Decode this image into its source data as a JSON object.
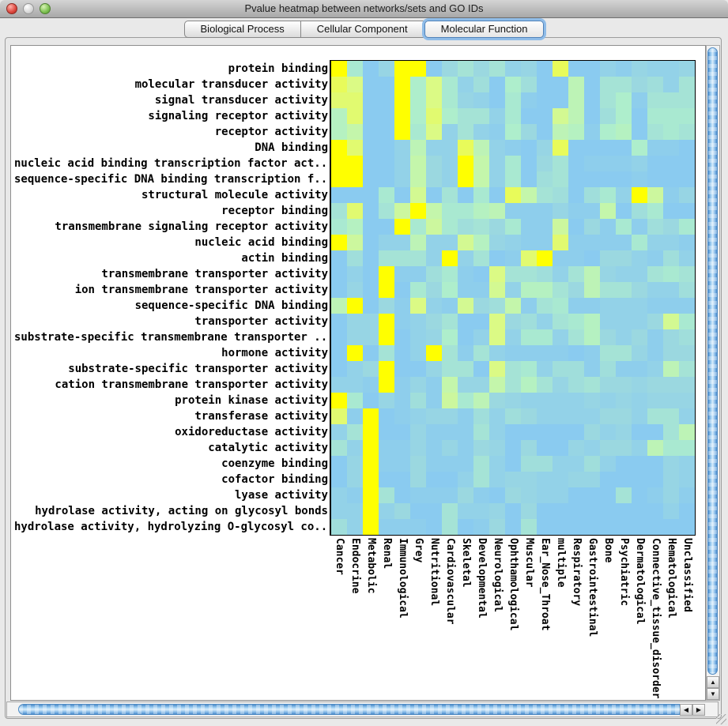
{
  "window": {
    "title": "Pvalue heatmap between networks/sets and GO IDs"
  },
  "titlebar_icons": [
    "close-icon",
    "minimize-icon",
    "zoom-icon"
  ],
  "tabs": [
    {
      "label": "Biological Process",
      "selected": false
    },
    {
      "label": "Cellular Component",
      "selected": false
    },
    {
      "label": "Molecular Function",
      "selected": true
    }
  ],
  "scrollbar_icons": {
    "up": "▲",
    "down": "▼",
    "left": "◀",
    "right": "▶"
  },
  "colors": {
    "heatmap_base_blue": "#8ACBF0",
    "heatmap_max_yellow": "#FFFF00",
    "selected_tab_ring": "#8FBCE8",
    "scrollbar_thumb_blue": "#7FB5E6",
    "panel_gray": "#E8E8E8"
  },
  "chart_data": {
    "type": "heatmap",
    "title": "Pvalue heatmap between networks/sets and GO IDs",
    "xlabel": "",
    "ylabel": "",
    "legend_position": "none",
    "grid": false,
    "value_range": [
      0,
      1
    ],
    "colorscale": [
      {
        "v": 0.0,
        "c": "#8ACBF0"
      },
      {
        "v": 0.2,
        "c": "#9BD8E0"
      },
      {
        "v": 0.4,
        "c": "#AEEECC"
      },
      {
        "v": 0.55,
        "c": "#C4F6AB"
      },
      {
        "v": 0.7,
        "c": "#DBFA85"
      },
      {
        "v": 0.85,
        "c": "#EEFB45"
      },
      {
        "v": 1.0,
        "c": "#FFFF00"
      }
    ],
    "rows": [
      "protein binding",
      "molecular transducer activity",
      "signal transducer activity",
      "signaling receptor activity",
      "receptor activity",
      "DNA binding",
      "nucleic acid binding transcription factor act...",
      "sequence-specific DNA binding transcription f...",
      "structural molecule activity",
      "receptor binding",
      "transmembrane signaling receptor activity",
      "nucleic acid binding",
      "actin binding",
      "transmembrane transporter activity",
      "ion transmembrane transporter activity",
      "sequence-specific DNA binding",
      "transporter activity",
      "substrate-specific transmembrane transporter ...",
      "hormone activity",
      "substrate-specific transporter activity",
      "cation transmembrane transporter activity",
      "protein kinase activity",
      "transferase activity",
      "oxidoreductase activity",
      "catalytic activity",
      "coenzyme binding",
      "cofactor binding",
      "lyase activity",
      "hydrolase activity, acting on glycosyl bonds",
      "hydrolase activity, hydrolyzing O-glycosyl co..."
    ],
    "columns": [
      "Cancer",
      "Endocrine",
      "Metabolic",
      "Renal",
      "Immunological",
      "Grey",
      "Nutritional",
      "Cardiovascular",
      "Skeletal",
      "Developmental",
      "Neurological",
      "Ophthamological",
      "Muscular",
      "Ear_Nose_Throat",
      "multiple",
      "Respiratory",
      "Gastrointestinal",
      "Bone",
      "Psychiatric",
      "Dermatological",
      "Connective_tissue_disorder",
      "Hematological",
      "Unclassified"
    ],
    "values": [
      [
        1,
        0.35,
        0,
        0.15,
        1,
        1,
        0,
        0.2,
        0.3,
        0.2,
        0.3,
        0.1,
        0.15,
        0,
        0.8,
        0,
        0,
        0.1,
        0.05,
        0.15,
        0.1,
        0.1,
        0.15
      ],
      [
        0.8,
        0.7,
        0,
        0,
        1,
        0.4,
        0.7,
        0.35,
        0.1,
        0.25,
        0,
        0.4,
        0.25,
        0,
        0,
        0.5,
        0,
        0.3,
        0.3,
        0.2,
        0.25,
        0.1,
        0.3
      ],
      [
        0.75,
        0.75,
        0,
        0,
        1,
        0.4,
        0.7,
        0.35,
        0.15,
        0.1,
        0,
        0.35,
        0.05,
        0,
        0,
        0.5,
        0,
        0.3,
        0.4,
        0.05,
        0.3,
        0.3,
        0.3
      ],
      [
        0.45,
        0.75,
        0,
        0,
        1,
        0.4,
        0.75,
        0.4,
        0.3,
        0.3,
        0.1,
        0.35,
        0,
        0,
        0.65,
        0.5,
        0,
        0.25,
        0.4,
        0,
        0.35,
        0.35,
        0.35
      ],
      [
        0.45,
        0.55,
        0,
        0,
        1,
        0.35,
        0.7,
        0.1,
        0.3,
        0.1,
        0.05,
        0.4,
        0.2,
        0,
        0.5,
        0.45,
        0.05,
        0.4,
        0.45,
        0,
        0.3,
        0.35,
        0.3
      ],
      [
        1,
        0.75,
        0,
        0,
        0.1,
        0.5,
        0.1,
        0.1,
        0.8,
        0.5,
        0.1,
        0.05,
        0,
        0.15,
        0.8,
        0,
        0,
        0,
        0,
        0.4,
        0.05,
        0.05,
        0
      ],
      [
        1,
        1,
        0,
        0,
        0.1,
        0.55,
        0.2,
        0.1,
        1,
        0.55,
        0.1,
        0.35,
        0,
        0.2,
        0.3,
        0,
        0.05,
        0.05,
        0.05,
        0.1,
        0,
        0,
        0
      ],
      [
        1,
        1,
        0,
        0,
        0.1,
        0.55,
        0.2,
        0.1,
        1,
        0.55,
        0.1,
        0.35,
        0,
        0.25,
        0.3,
        0,
        0,
        0,
        0,
        0.05,
        0,
        0,
        0
      ],
      [
        0,
        0,
        0,
        0.35,
        0,
        0.65,
        0,
        0.3,
        0,
        0.35,
        0,
        0.8,
        0.55,
        0.3,
        0.25,
        0,
        0.25,
        0.35,
        0.1,
        1,
        0.6,
        0.05,
        0.15
      ],
      [
        0.3,
        0.75,
        0,
        0.3,
        0.6,
        1,
        0.55,
        0.35,
        0.35,
        0.45,
        0.5,
        0.05,
        0.05,
        0.05,
        0.15,
        0.05,
        0.05,
        0.55,
        0,
        0.25,
        0.35,
        0,
        0
      ],
      [
        0.35,
        0.45,
        0,
        0,
        1,
        0.35,
        0.6,
        0.35,
        0.25,
        0.3,
        0.2,
        0.35,
        0.05,
        0.05,
        0.6,
        0,
        0.2,
        0.05,
        0.35,
        0.05,
        0.25,
        0.2,
        0.35
      ],
      [
        1,
        0.6,
        0,
        0.1,
        0.1,
        0.5,
        0.1,
        0.1,
        0.65,
        0.45,
        0.15,
        0.1,
        0.05,
        0.05,
        0.75,
        0.05,
        0.05,
        0.05,
        0.05,
        0.35,
        0.1,
        0.1,
        0.05
      ],
      [
        0,
        0.25,
        0,
        0.3,
        0.3,
        0.3,
        0.1,
        1,
        0.1,
        0.3,
        0,
        0.05,
        0.75,
        1,
        0.05,
        0.05,
        0,
        0.2,
        0.2,
        0.1,
        0.05,
        0.25,
        0.1
      ],
      [
        0,
        0.1,
        0,
        1,
        0.05,
        0.05,
        0.25,
        0.35,
        0.05,
        0,
        0.7,
        0.3,
        0.3,
        0.25,
        0.1,
        0.3,
        0.5,
        0.15,
        0.1,
        0.1,
        0.3,
        0.35,
        0.3
      ],
      [
        0,
        0.15,
        0,
        1,
        0,
        0.35,
        0.2,
        0.4,
        0.05,
        0.05,
        0.65,
        0.1,
        0.45,
        0.45,
        0.3,
        0.2,
        0.5,
        0.3,
        0.3,
        0.2,
        0.1,
        0.1,
        0.25
      ],
      [
        0.5,
        1,
        0,
        0.2,
        0.05,
        0.7,
        0.1,
        0.05,
        0.65,
        0.2,
        0.25,
        0.55,
        0.05,
        0.3,
        0.35,
        0.05,
        0.05,
        0.1,
        0.1,
        0.1,
        0.05,
        0.05,
        0.05
      ],
      [
        0,
        0.15,
        0.15,
        1,
        0.05,
        0.1,
        0.2,
        0.3,
        0,
        0,
        0.7,
        0.2,
        0.25,
        0.1,
        0.3,
        0.35,
        0.45,
        0.1,
        0.1,
        0.1,
        0.2,
        0.65,
        0.35
      ],
      [
        0,
        0.15,
        0.15,
        1,
        0,
        0.1,
        0.15,
        0.4,
        0,
        0.1,
        0.7,
        0.1,
        0.35,
        0.35,
        0.1,
        0.3,
        0.45,
        0.2,
        0.1,
        0.2,
        0.05,
        0.2,
        0.25
      ],
      [
        0,
        1,
        0,
        0.3,
        0,
        0.1,
        1,
        0.3,
        0.05,
        0.3,
        0.1,
        0.05,
        0.05,
        0.05,
        0.05,
        0,
        0.05,
        0.3,
        0.3,
        0.15,
        0.05,
        0.2,
        0.2
      ],
      [
        0,
        0.1,
        0.2,
        1,
        0,
        0,
        0.15,
        0.3,
        0.3,
        0,
        0.7,
        0.3,
        0.35,
        0.1,
        0.25,
        0.25,
        0.05,
        0.25,
        0.05,
        0.05,
        0.1,
        0.5,
        0.3
      ],
      [
        0.1,
        0.1,
        0.05,
        1,
        0.05,
        0.15,
        0.05,
        0.55,
        0.15,
        0.15,
        0.55,
        0.3,
        0.45,
        0.3,
        0.15,
        0.25,
        0.3,
        0.2,
        0.2,
        0.15,
        0.2,
        0.2,
        0.2
      ],
      [
        1,
        0.35,
        0,
        0.15,
        0.05,
        0.25,
        0.05,
        0.6,
        0.35,
        0.5,
        0.2,
        0.15,
        0.1,
        0.1,
        0.1,
        0.1,
        0.15,
        0.1,
        0.15,
        0.1,
        0.15,
        0.15,
        0.15
      ],
      [
        0.75,
        0.05,
        1,
        0,
        0.05,
        0.1,
        0.15,
        0.15,
        0.05,
        0.25,
        0.1,
        0.25,
        0.2,
        0.1,
        0.1,
        0.1,
        0.1,
        0.2,
        0.2,
        0.1,
        0.3,
        0.3,
        0.1
      ],
      [
        0.1,
        0.3,
        1,
        0,
        0,
        0.15,
        0.05,
        0.05,
        0.05,
        0.3,
        0.1,
        0,
        0,
        0,
        0,
        0,
        0.2,
        0.1,
        0.15,
        0,
        0,
        0.3,
        0.5
      ],
      [
        0.3,
        0.1,
        1,
        0.05,
        0.05,
        0.15,
        0.05,
        0.15,
        0.05,
        0.2,
        0.15,
        0,
        0.2,
        0,
        0,
        0.15,
        0.1,
        0.2,
        0.2,
        0.1,
        0.5,
        0.35,
        0.35
      ],
      [
        0,
        0.15,
        1,
        0.05,
        0.05,
        0.2,
        0.05,
        0.05,
        0.05,
        0.3,
        0.1,
        0,
        0.25,
        0.25,
        0.1,
        0.1,
        0.25,
        0.1,
        0,
        0,
        0,
        0.15,
        0.1
      ],
      [
        0,
        0.15,
        1,
        0,
        0,
        0.2,
        0,
        0,
        0.1,
        0.3,
        0.1,
        0.15,
        0.15,
        0.1,
        0.1,
        0.15,
        0.15,
        0,
        0,
        0,
        0,
        0.15,
        0.1
      ],
      [
        0.1,
        0.05,
        1,
        0.3,
        0,
        0.05,
        0.05,
        0.05,
        0.2,
        0.05,
        0,
        0.2,
        0.15,
        0.1,
        0.1,
        0,
        0,
        0,
        0.3,
        0,
        0.05,
        0.15,
        0.05
      ],
      [
        0.1,
        0.1,
        1,
        0.1,
        0.2,
        0,
        0,
        0.3,
        0.1,
        0.1,
        0.15,
        0,
        0.2,
        0,
        0,
        0,
        0,
        0,
        0,
        0,
        0,
        0.1,
        0
      ],
      [
        0.25,
        0.1,
        1,
        0.05,
        0.05,
        0.05,
        0,
        0.3,
        0,
        0.05,
        0.2,
        0,
        0.3,
        0,
        0,
        0,
        0,
        0,
        0,
        0,
        0,
        0,
        0
      ]
    ]
  }
}
